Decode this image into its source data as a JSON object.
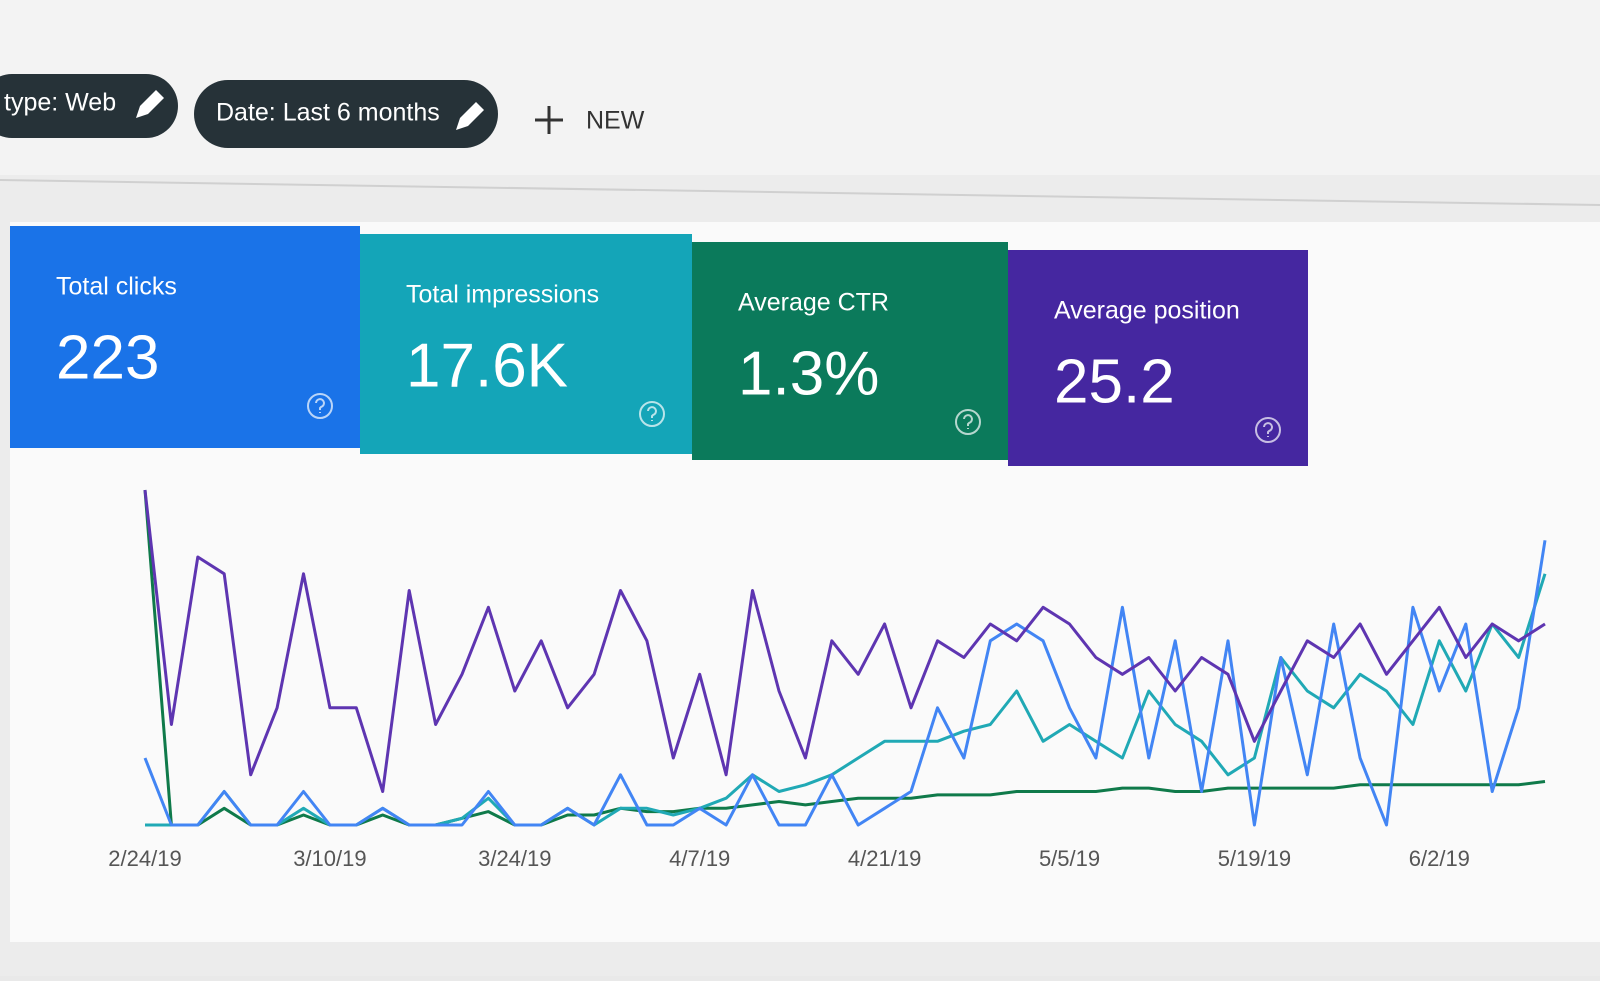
{
  "filters": [
    {
      "label": "type: Web"
    },
    {
      "label": "Date: Last 6 months"
    }
  ],
  "new_button": "NEW",
  "cards": [
    {
      "label": "Total clicks",
      "value": "223",
      "color": "#1a73e8"
    },
    {
      "label": "Total impressions",
      "value": "17.6K",
      "color": "#14a5b8"
    },
    {
      "label": "Average CTR",
      "value": "1.3%",
      "color": "#0b7a5b"
    },
    {
      "label": "Average position",
      "value": "25.2",
      "color": "#4527a0"
    }
  ],
  "chart_data": {
    "type": "line",
    "categories": [
      "2/24/19",
      null,
      null,
      null,
      null,
      null,
      null,
      "3/10/19",
      null,
      null,
      null,
      null,
      null,
      null,
      "3/24/19",
      null,
      null,
      null,
      null,
      null,
      null,
      "4/7/19",
      null,
      null,
      null,
      null,
      null,
      null,
      "4/21/19",
      null,
      null,
      null,
      null,
      null,
      null,
      "5/5/19",
      null,
      null,
      null,
      null,
      null,
      null,
      "5/19/19",
      null,
      null,
      null,
      null,
      null,
      null,
      "6/2/19",
      null,
      null,
      null,
      null
    ],
    "ylim": [
      0,
      100
    ],
    "series": [
      {
        "color": "#0f7a4a",
        "values": [
          100,
          0,
          0,
          5,
          0,
          0,
          3,
          0,
          0,
          3,
          0,
          0,
          2,
          4,
          0,
          0,
          3,
          3,
          5,
          4,
          4,
          5,
          5,
          6,
          7,
          6,
          7,
          8,
          8,
          8,
          9,
          9,
          9,
          10,
          10,
          10,
          10,
          11,
          11,
          10,
          10,
          11,
          11,
          11,
          11,
          11,
          12,
          12,
          12,
          12,
          12,
          12,
          12,
          13
        ]
      },
      {
        "color": "#20a9b5",
        "values": [
          0,
          0,
          0,
          10,
          0,
          0,
          5,
          0,
          0,
          5,
          0,
          0,
          2,
          8,
          0,
          0,
          5,
          0,
          5,
          5,
          3,
          5,
          8,
          15,
          10,
          12,
          15,
          20,
          25,
          25,
          25,
          28,
          30,
          40,
          25,
          30,
          25,
          20,
          40,
          30,
          25,
          15,
          20,
          50,
          40,
          35,
          45,
          40,
          30,
          55,
          40,
          60,
          50,
          75
        ]
      },
      {
        "color": "#4285f4",
        "values": [
          20,
          0,
          0,
          10,
          0,
          0,
          10,
          0,
          0,
          5,
          0,
          0,
          0,
          10,
          0,
          0,
          5,
          0,
          15,
          0,
          0,
          5,
          0,
          15,
          0,
          0,
          15,
          0,
          5,
          10,
          35,
          20,
          55,
          60,
          55,
          35,
          20,
          65,
          20,
          55,
          10,
          55,
          0,
          50,
          15,
          60,
          20,
          0,
          65,
          40,
          60,
          10,
          35,
          85
        ]
      },
      {
        "color": "#5e35b1",
        "values": [
          100,
          30,
          80,
          75,
          15,
          35,
          75,
          35,
          35,
          10,
          70,
          30,
          45,
          65,
          40,
          55,
          35,
          45,
          70,
          55,
          20,
          45,
          15,
          70,
          40,
          20,
          55,
          45,
          60,
          35,
          55,
          50,
          60,
          55,
          65,
          60,
          50,
          45,
          50,
          40,
          50,
          45,
          25,
          40,
          55,
          50,
          60,
          45,
          55,
          65,
          50,
          60,
          55,
          60
        ]
      }
    ]
  }
}
